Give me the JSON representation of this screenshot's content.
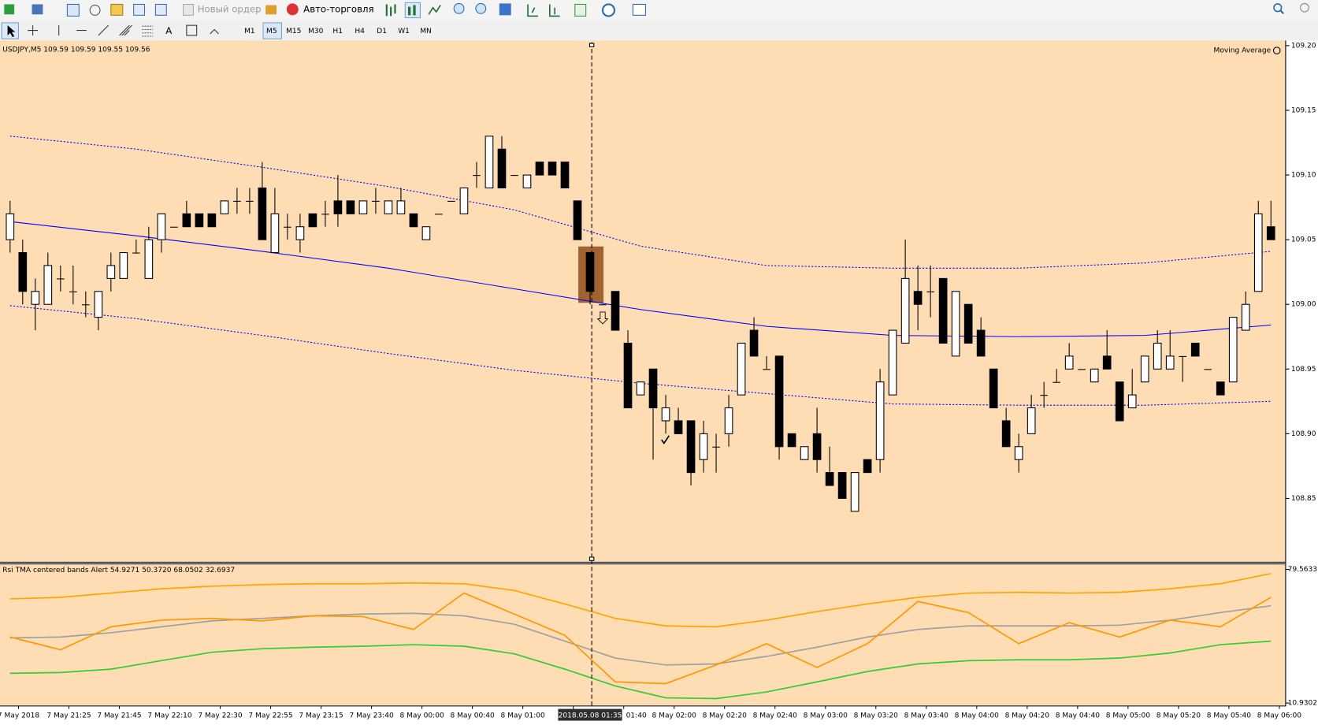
{
  "toolbar": {
    "new_order": "Новый ордер",
    "auto_trading": "Авто-торговля",
    "timeframes": [
      "M1",
      "M5",
      "M15",
      "M30",
      "H1",
      "H4",
      "D1",
      "W1",
      "MN"
    ],
    "active_timeframe": "M5"
  },
  "crosshair_label": "2018.05.08 01:35",
  "x_labels": [
    "7 May 2018",
    "7 May 21:25",
    "7 May 21:45",
    "7 May 22:10",
    "7 May 22:30",
    "7 May 22:55",
    "7 May 23:15",
    "7 May 23:40",
    "8 May 00:00",
    "8 May 00:40",
    "8 May 01:00",
    "8",
    "01:40",
    "8 May 02:00",
    "8 May 02:20",
    "8 May 02:40",
    "8 May 03:00",
    "8 May 03:20",
    "8 May 03:40",
    "8 May 04:00",
    "8 May 04:20",
    "8 May 04:40",
    "8 May 05:00",
    "8 May 05:20",
    "8 May 05:40",
    "8 May 06:00"
  ],
  "chart_data": [
    {
      "type": "candlestick",
      "title": "USDJPY,M5  109.59 109.59 109.55 109.56",
      "indicator_name": "Moving Average",
      "up_color": "#ffffff",
      "down_color": "#000000",
      "open": [
        109.05,
        109.04,
        109.0,
        109.0,
        109.02,
        109.01,
        109.0,
        108.99,
        109.02,
        109.02,
        109.04,
        109.02,
        109.05,
        109.06,
        109.07,
        109.07,
        109.07,
        109.07,
        109.08,
        109.08,
        109.09,
        109.04,
        109.06,
        109.05,
        109.07,
        109.07,
        109.08,
        109.08,
        109.07,
        109.08,
        109.07,
        109.07,
        109.07,
        109.05,
        109.07,
        109.08,
        109.07,
        109.1,
        109.09,
        109.12,
        109.1,
        109.09,
        109.11,
        109.11,
        109.11,
        109.08,
        109.04,
        109.0,
        109.01,
        108.97,
        108.93,
        108.95,
        108.91,
        108.91,
        108.91,
        108.88,
        108.89,
        108.9,
        108.93,
        108.98,
        108.95,
        108.96,
        108.9,
        108.88,
        108.9,
        108.87,
        108.87,
        108.84,
        108.88,
        108.88,
        108.93,
        108.97,
        109.01,
        109.01,
        109.02,
        108.96,
        109.0,
        108.98,
        108.95,
        108.91,
        108.88,
        108.9,
        108.93,
        108.94,
        108.95,
        108.95,
        108.94,
        108.96,
        108.94,
        108.92,
        108.94,
        108.95,
        108.95,
        108.96,
        108.97,
        108.95,
        108.94,
        108.94,
        108.98,
        109.01,
        109.06
      ],
      "high": [
        109.08,
        109.05,
        109.02,
        109.04,
        109.03,
        109.03,
        109.01,
        109.01,
        109.04,
        109.04,
        109.05,
        109.06,
        109.07,
        109.06,
        109.08,
        109.07,
        109.07,
        109.08,
        109.09,
        109.09,
        109.11,
        109.09,
        109.07,
        109.07,
        109.07,
        109.08,
        109.1,
        109.08,
        109.08,
        109.09,
        109.08,
        109.09,
        109.07,
        109.06,
        109.07,
        109.08,
        109.09,
        109.11,
        109.13,
        109.13,
        109.1,
        109.1,
        109.11,
        109.11,
        109.11,
        109.08,
        109.04,
        109.0,
        109.01,
        108.98,
        108.94,
        108.95,
        108.93,
        108.92,
        108.91,
        108.91,
        108.9,
        108.93,
        108.97,
        108.99,
        108.96,
        108.96,
        108.9,
        108.89,
        108.92,
        108.89,
        108.87,
        108.87,
        108.88,
        108.95,
        108.98,
        109.05,
        109.03,
        109.03,
        109.02,
        109.01,
        109.0,
        108.99,
        108.95,
        108.92,
        108.9,
        108.93,
        108.94,
        108.95,
        108.97,
        108.95,
        108.95,
        108.98,
        108.94,
        108.95,
        108.96,
        108.98,
        108.98,
        108.96,
        108.97,
        108.95,
        108.94,
        108.99,
        109.01,
        109.08,
        109.08
      ],
      "low": [
        109.04,
        109.0,
        108.98,
        109.0,
        109.01,
        109.0,
        108.99,
        108.98,
        109.01,
        109.02,
        109.04,
        109.02,
        109.04,
        109.06,
        109.06,
        109.06,
        109.06,
        109.07,
        109.07,
        109.07,
        109.05,
        109.04,
        109.05,
        109.04,
        109.06,
        109.06,
        109.06,
        109.07,
        109.07,
        109.07,
        109.07,
        109.07,
        109.06,
        109.05,
        109.07,
        109.08,
        109.07,
        109.09,
        109.09,
        109.09,
        109.1,
        109.09,
        109.1,
        109.1,
        109.09,
        109.05,
        109.0,
        109.0,
        108.98,
        108.92,
        108.93,
        108.88,
        108.9,
        108.9,
        108.86,
        108.87,
        108.87,
        108.89,
        108.93,
        108.96,
        108.95,
        108.88,
        108.89,
        108.88,
        108.87,
        108.86,
        108.85,
        108.84,
        108.87,
        108.87,
        108.93,
        108.97,
        108.98,
        108.99,
        108.97,
        108.96,
        108.97,
        108.96,
        108.92,
        108.89,
        108.87,
        108.9,
        108.92,
        108.94,
        108.95,
        108.95,
        108.94,
        108.95,
        108.91,
        108.92,
        108.94,
        108.95,
        108.95,
        108.94,
        108.96,
        108.95,
        108.93,
        108.94,
        108.98,
        109.01,
        109.05
      ],
      "close": [
        109.07,
        109.01,
        109.01,
        109.03,
        109.02,
        109.01,
        109.0,
        109.01,
        109.03,
        109.04,
        109.04,
        109.05,
        109.07,
        109.06,
        109.06,
        109.06,
        109.06,
        109.08,
        109.08,
        109.08,
        109.05,
        109.07,
        109.06,
        109.06,
        109.06,
        109.07,
        109.07,
        109.07,
        109.08,
        109.08,
        109.08,
        109.08,
        109.06,
        109.06,
        109.07,
        109.08,
        109.09,
        109.1,
        109.13,
        109.09,
        109.1,
        109.1,
        109.1,
        109.1,
        109.09,
        109.05,
        109.01,
        109.0,
        108.98,
        108.92,
        108.94,
        108.92,
        108.92,
        108.9,
        108.87,
        108.9,
        108.89,
        108.92,
        108.97,
        108.96,
        108.95,
        108.89,
        108.89,
        108.89,
        108.88,
        108.86,
        108.85,
        108.87,
        108.87,
        108.94,
        108.98,
        109.02,
        109.0,
        109.01,
        108.97,
        109.01,
        108.97,
        108.96,
        108.92,
        108.89,
        108.89,
        108.92,
        108.93,
        108.94,
        108.96,
        108.95,
        108.95,
        108.95,
        108.91,
        108.93,
        108.96,
        108.97,
        108.96,
        108.96,
        108.96,
        108.95,
        108.93,
        108.99,
        109.0,
        109.07,
        109.05
      ],
      "series": [
        {
          "color": "#0000ff",
          "style": "solid",
          "values": [
            109.064,
            109.053,
            109.041,
            109.028,
            109.012,
            108.996,
            108.983,
            108.976,
            108.975,
            108.976,
            108.984
          ]
        },
        {
          "color": "#0000ff",
          "style": "dotted",
          "values": [
            109.13,
            109.12,
            109.106,
            109.091,
            109.073,
            109.045,
            109.03,
            109.028,
            109.028,
            109.032,
            109.041
          ]
        },
        {
          "color": "#0000ff",
          "style": "dotted",
          "values": [
            108.999,
            108.989,
            108.976,
            108.962,
            108.949,
            108.939,
            108.931,
            108.923,
            108.922,
            108.922,
            108.925
          ]
        }
      ],
      "ylim": [
        108.801,
        109.204
      ],
      "yticks": [
        {
          "value": 109.2,
          "label": "109.20"
        },
        109.15,
        {
          "value": 109.1,
          "label": "109.10"
        },
        109.05,
        {
          "value": 109,
          "label": "109.00"
        },
        108.95,
        {
          "value": 108.9,
          "label": "108.90"
        },
        108.85
      ]
    },
    {
      "type": "line",
      "title": "Rsi TMA centered bands Alert 54.9271 50.3720 68.0502 32.6937",
      "series": [
        {
          "color": "#ffa500",
          "values": [
            64.4,
            65.2,
            67.4,
            69.6,
            70.9,
            71.7,
            72.2,
            72.2,
            72.6,
            72.2,
            68.7,
            61.8,
            54.4,
            50.5,
            50.1,
            53.5,
            57.9,
            61.8,
            65.2,
            67.4,
            67.8,
            67.4,
            67.8,
            69.6,
            72.2,
            77.4
          ]
        },
        {
          "color": "#a0a0a0",
          "values": [
            44.4,
            44.8,
            47.0,
            50.1,
            53.1,
            54.4,
            55.7,
            56.6,
            57.0,
            55.7,
            51.4,
            42.7,
            34.0,
            30.5,
            31.0,
            34.9,
            39.6,
            44.8,
            48.7,
            50.5,
            50.5,
            50.5,
            50.9,
            53.5,
            57.4,
            60.9
          ]
        },
        {
          "color": "#32cd32",
          "values": [
            26.2,
            26.6,
            28.3,
            32.7,
            37.0,
            38.8,
            39.6,
            40.1,
            40.9,
            40.1,
            36.2,
            28.3,
            19.7,
            13.6,
            13.2,
            16.6,
            21.8,
            27.1,
            31.0,
            32.7,
            33.1,
            33.1,
            34.0,
            36.6,
            40.9,
            42.7
          ]
        },
        {
          "color": "#ff9900",
          "values": [
            44.8,
            38.3,
            50.1,
            53.5,
            54.4,
            53.1,
            55.7,
            55.3,
            48.7,
            67.4,
            56.6,
            45.7,
            21.8,
            20.9,
            30.5,
            41.4,
            29.2,
            41.4,
            63.1,
            57.4,
            41.4,
            52.2,
            44.8,
            53.5,
            50.1,
            65.2
          ]
        }
      ],
      "ylim": [
        9.19,
        82.6
      ],
      "yticks": [
        79.5633,
        10.9302
      ]
    }
  ]
}
